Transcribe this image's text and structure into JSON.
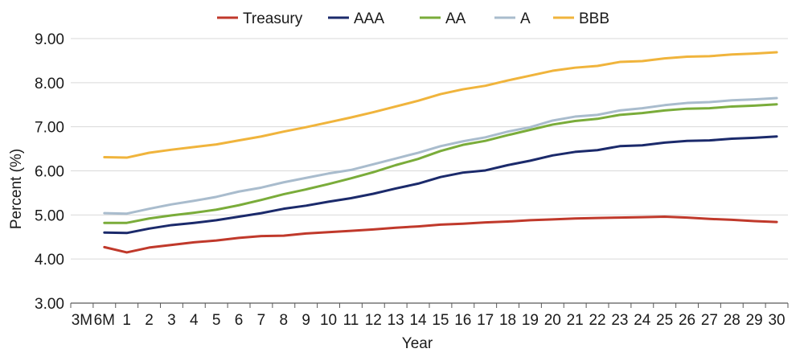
{
  "chart_data": {
    "type": "line",
    "title": "",
    "xlabel": "Year",
    "ylabel": "Percent (%)",
    "ylim": [
      3.0,
      9.0
    ],
    "yticks": [
      "3.00",
      "4.00",
      "5.00",
      "6.00",
      "7.00",
      "8.00",
      "9.00"
    ],
    "grid": "horizontal",
    "legend_position": "top",
    "categories": [
      "3M",
      "6M",
      "1",
      "2",
      "3",
      "4",
      "5",
      "6",
      "7",
      "8",
      "9",
      "10",
      "11",
      "12",
      "13",
      "14",
      "15",
      "16",
      "17",
      "18",
      "19",
      "20",
      "21",
      "22",
      "23",
      "24",
      "25",
      "26",
      "27",
      "28",
      "29",
      "30"
    ],
    "series": [
      {
        "name": "Treasury",
        "color": "#c0392b",
        "values": [
          null,
          4.27,
          4.15,
          4.26,
          4.32,
          4.38,
          4.42,
          4.48,
          4.52,
          4.53,
          4.58,
          4.61,
          4.64,
          4.67,
          4.71,
          4.74,
          4.78,
          4.8,
          4.83,
          4.85,
          4.88,
          4.9,
          4.92,
          4.93,
          4.94,
          4.95,
          4.96,
          4.94,
          4.91,
          4.89,
          4.86,
          4.84
        ]
      },
      {
        "name": "AAA",
        "color": "#1b2a6b",
        "values": [
          null,
          4.6,
          4.59,
          4.69,
          4.77,
          4.82,
          4.88,
          4.96,
          5.04,
          5.14,
          5.21,
          5.3,
          5.38,
          5.48,
          5.6,
          5.71,
          5.86,
          5.96,
          6.01,
          6.13,
          6.23,
          6.35,
          6.43,
          6.47,
          6.56,
          6.58,
          6.64,
          6.68,
          6.69,
          6.73,
          6.75,
          6.78
        ]
      },
      {
        "name": "AA",
        "color": "#7aac3a",
        "values": [
          null,
          4.82,
          4.82,
          4.92,
          4.99,
          5.05,
          5.12,
          5.22,
          5.34,
          5.47,
          5.58,
          5.7,
          5.83,
          5.97,
          6.13,
          6.27,
          6.45,
          6.59,
          6.68,
          6.81,
          6.93,
          7.05,
          7.13,
          7.18,
          7.27,
          7.31,
          7.37,
          7.41,
          7.42,
          7.46,
          7.48,
          7.51
        ]
      },
      {
        "name": "A",
        "color": "#a9bccd",
        "values": [
          null,
          5.04,
          5.03,
          5.14,
          5.24,
          5.32,
          5.41,
          5.53,
          5.62,
          5.74,
          5.84,
          5.94,
          6.02,
          6.15,
          6.28,
          6.41,
          6.56,
          6.67,
          6.76,
          6.89,
          6.99,
          7.14,
          7.23,
          7.27,
          7.37,
          7.42,
          7.49,
          7.54,
          7.56,
          7.6,
          7.62,
          7.65
        ]
      },
      {
        "name": "BBB",
        "color": "#f0b43c",
        "values": [
          null,
          6.31,
          6.3,
          6.41,
          6.48,
          6.54,
          6.6,
          6.69,
          6.78,
          6.89,
          6.99,
          7.1,
          7.21,
          7.33,
          7.46,
          7.59,
          7.74,
          7.85,
          7.93,
          8.05,
          8.16,
          8.27,
          8.34,
          8.38,
          8.47,
          8.49,
          8.55,
          8.59,
          8.6,
          8.64,
          8.66,
          8.69
        ]
      }
    ]
  }
}
